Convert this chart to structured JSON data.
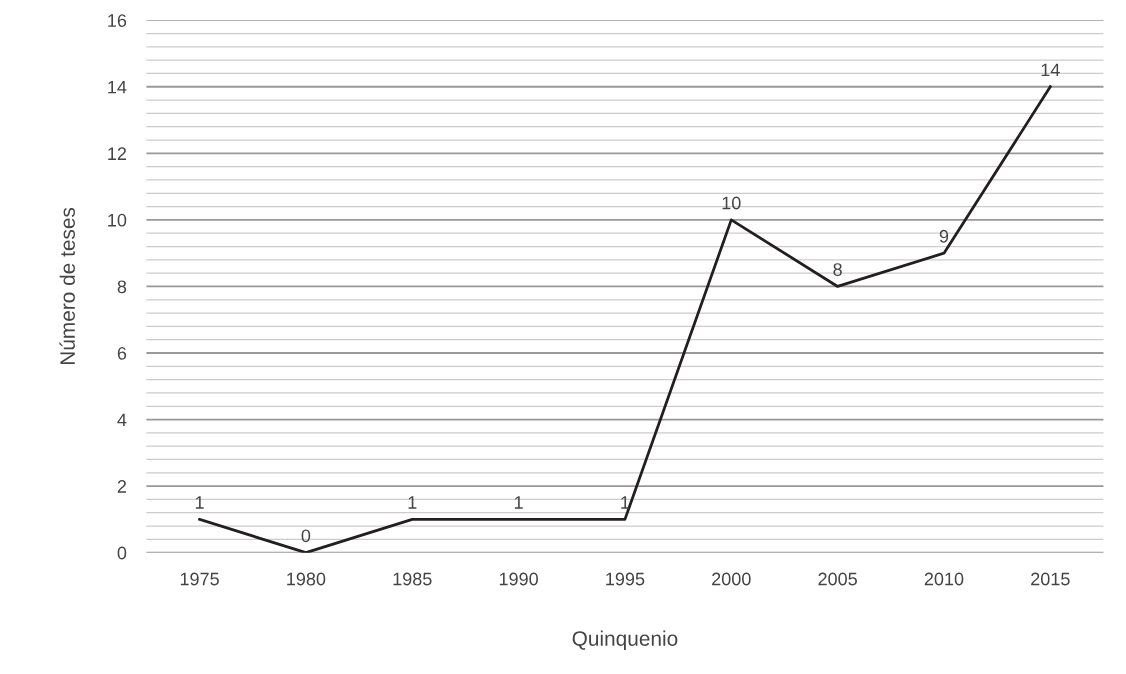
{
  "chart_data": {
    "type": "line",
    "xlabel": "Quinquenio",
    "ylabel": "Número de teses",
    "categories": [
      "1975",
      "1980",
      "1985",
      "1990",
      "1995",
      "2000",
      "2005",
      "2010",
      "2015"
    ],
    "series": [
      {
        "color": "#231f20",
        "values": [
          1,
          0,
          1,
          1,
          1,
          10,
          8,
          9,
          14
        ]
      }
    ],
    "ylim": [
      0,
      16
    ],
    "yticks": [
      0,
      2,
      4,
      6,
      8,
      10,
      12,
      14,
      16
    ],
    "grid": "y",
    "data_labels": true,
    "marker": "none",
    "line_style": "solid",
    "legend": false
  }
}
